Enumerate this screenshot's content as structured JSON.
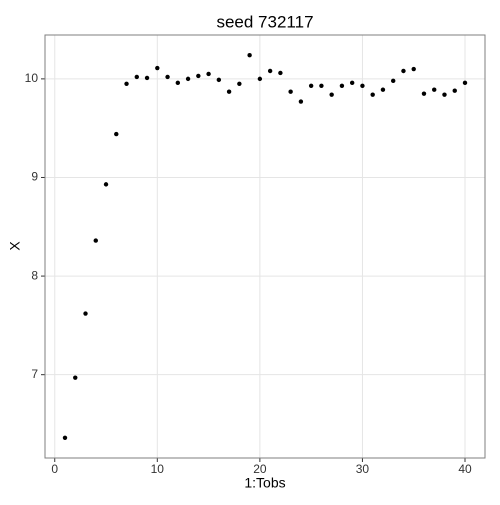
{
  "chart_data": {
    "type": "scatter",
    "title": "seed 732117",
    "x_label": "1:Tobs",
    "y_label": "X",
    "x": [
      1,
      2,
      3,
      4,
      5,
      6,
      7,
      8,
      9,
      10,
      11,
      12,
      13,
      14,
      15,
      16,
      17,
      18,
      19,
      20,
      21,
      22,
      23,
      24,
      25,
      26,
      27,
      28,
      29,
      30,
      31,
      32,
      33,
      34,
      35,
      36,
      37,
      38,
      39,
      40
    ],
    "series": [
      {
        "color": "#000000",
        "values": [
          6.36,
          6.97,
          7.62,
          8.36,
          8.93,
          9.44,
          9.95,
          10.02,
          10.01,
          10.11,
          10.02,
          9.96,
          10.0,
          10.03,
          10.05,
          9.99,
          9.87,
          9.95,
          10.24,
          10.0,
          10.08,
          10.06,
          9.87,
          9.77,
          9.93,
          9.93,
          9.84,
          9.93,
          9.96,
          9.93,
          9.84,
          9.89,
          9.98,
          10.08,
          10.1,
          9.85,
          9.89,
          9.84,
          9.88,
          9.96
        ]
      }
    ],
    "xlim": [
      -0.95,
      41.95
    ],
    "xticks": [
      0,
      10,
      20,
      30,
      40
    ],
    "ylim": [
      6.155,
      10.445
    ],
    "yticks": [
      7,
      8,
      9,
      10
    ],
    "grid": true
  }
}
